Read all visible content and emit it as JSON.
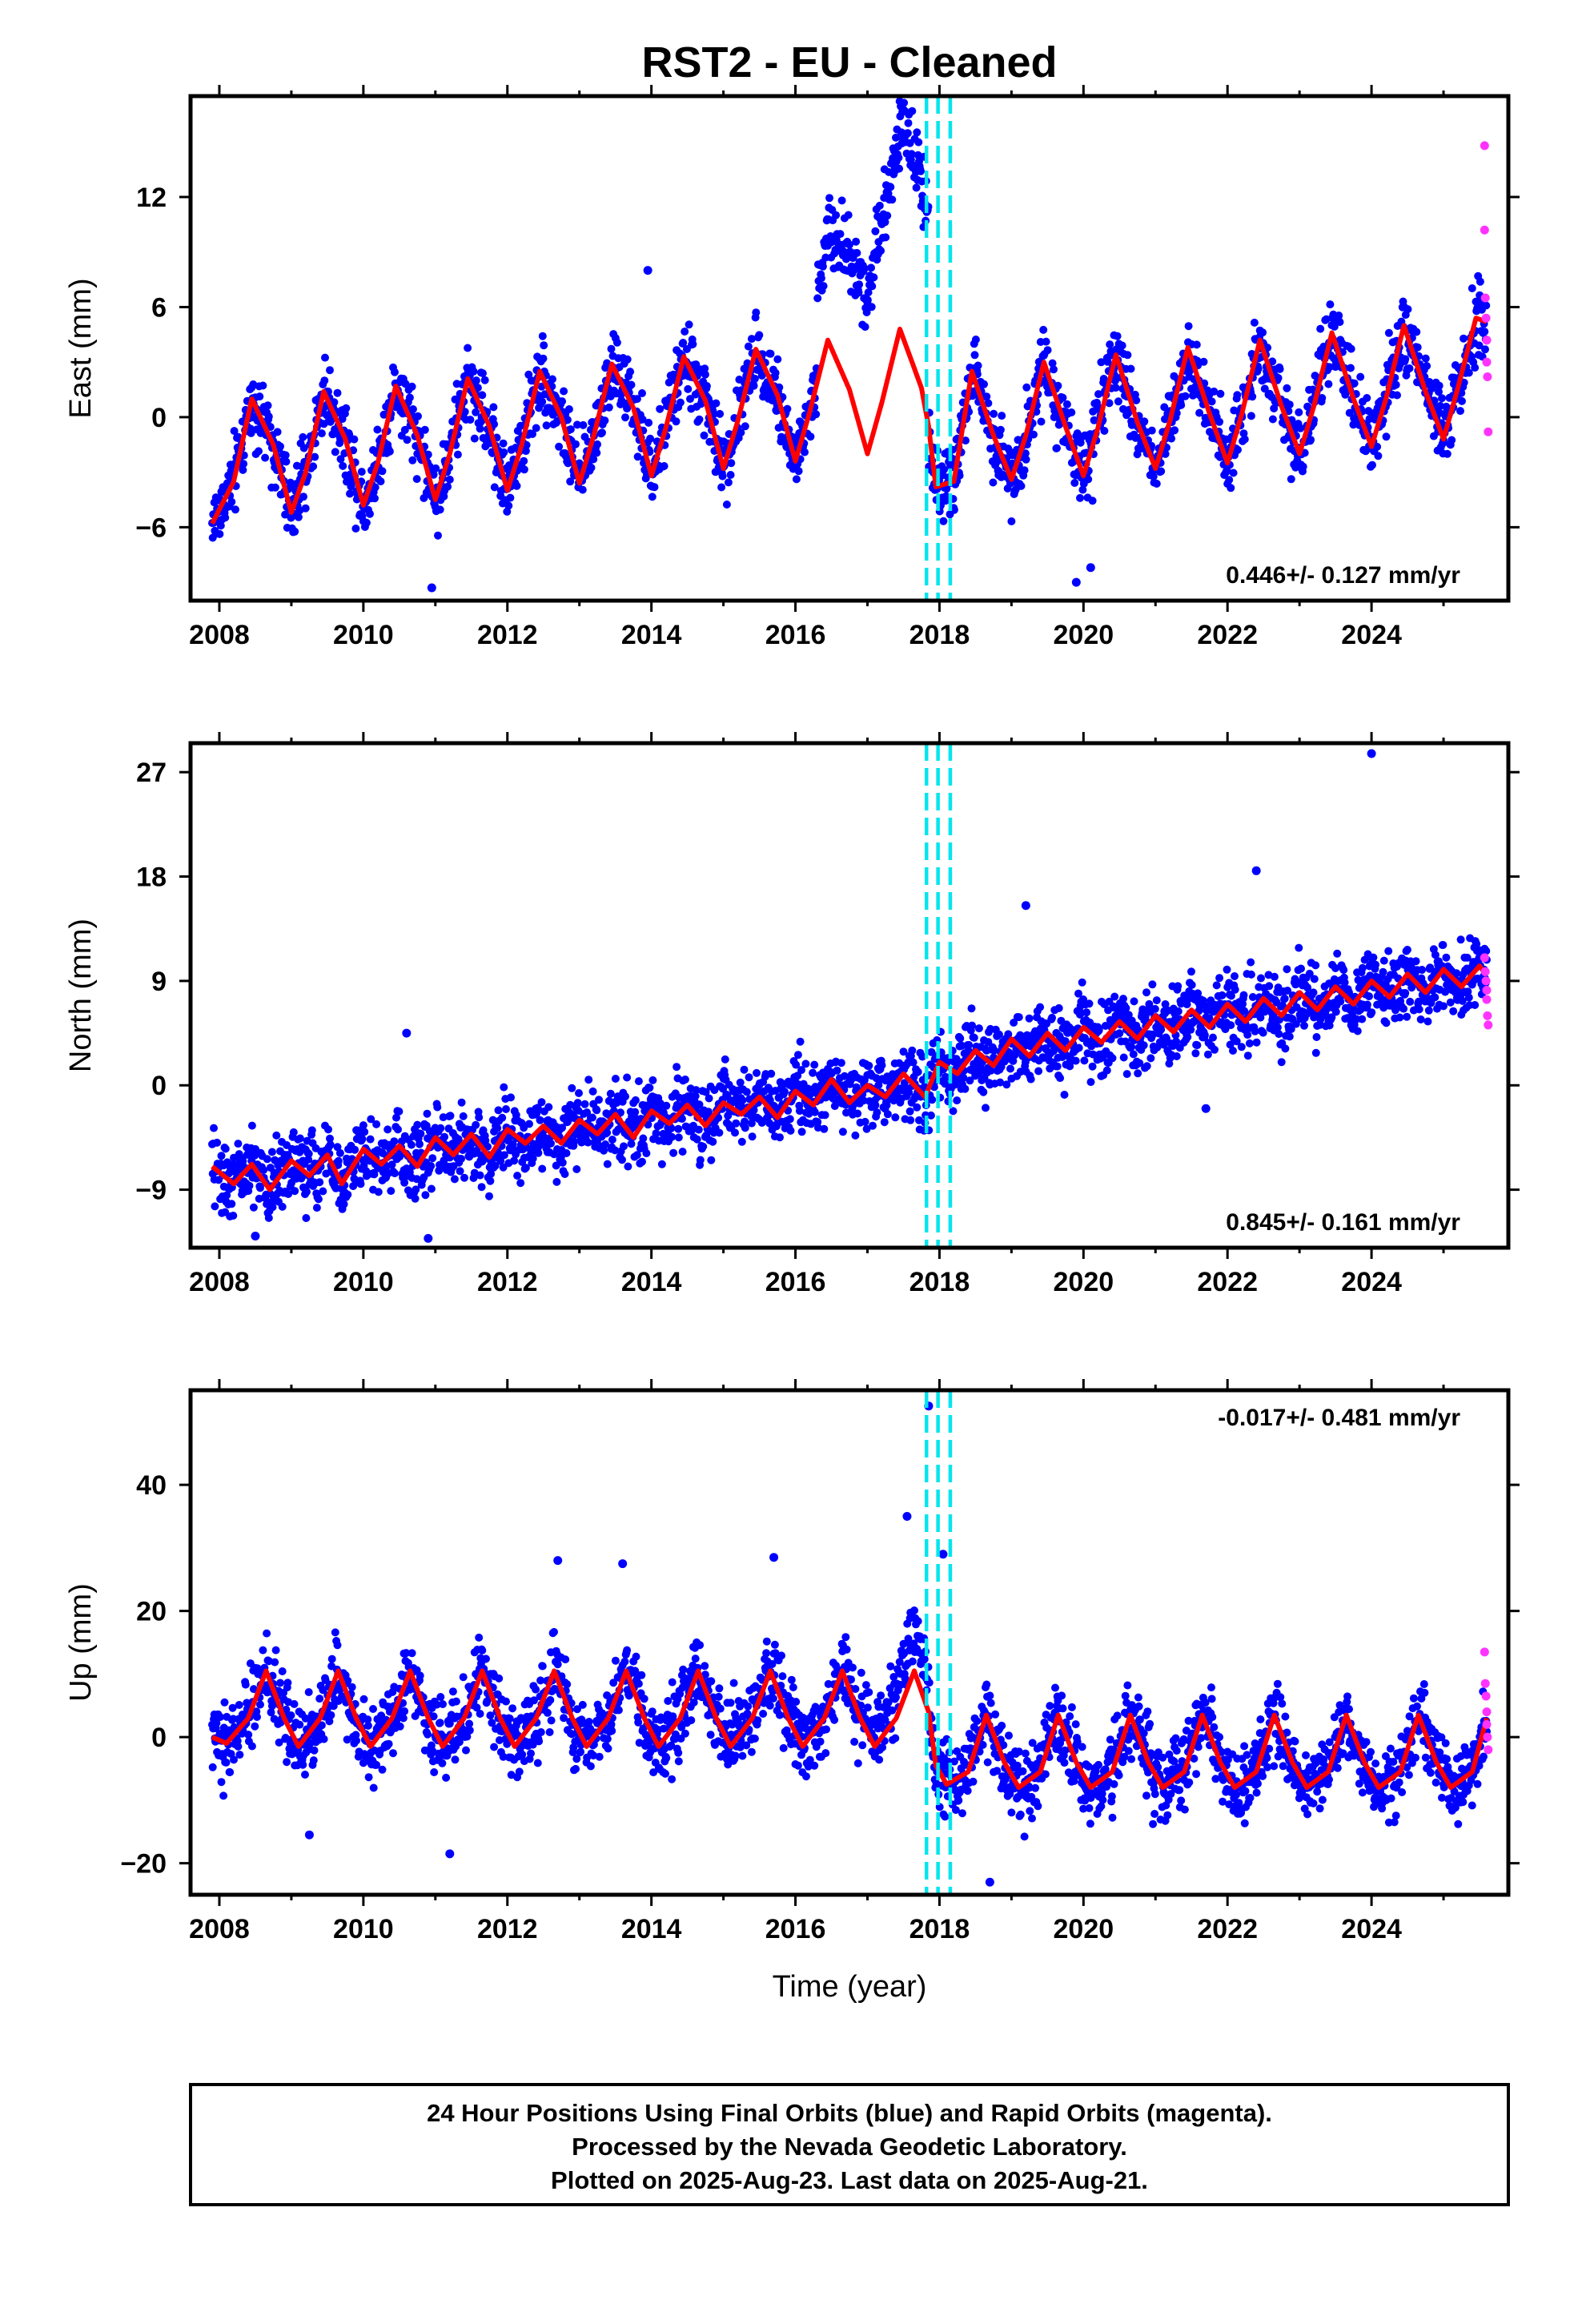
{
  "chart_data": [
    {
      "type": "scatter",
      "id": "east",
      "title": "RST2  - EU - Cleaned",
      "ylabel": "East (mm)",
      "xlabel": "",
      "xlim": [
        2007.6,
        2025.9
      ],
      "ylim": [
        -10,
        17.5
      ],
      "xticks": [
        2008,
        2010,
        2012,
        2014,
        2016,
        2018,
        2020,
        2022,
        2024
      ],
      "yticks": [
        -6,
        0,
        6,
        12
      ],
      "rate_label": "0.446+/- 0.127 mm/yr",
      "grid": false,
      "vertical_lines": [
        2017.82,
        2017.98,
        2018.15
      ],
      "fit_curve": {
        "color": "#ff0000",
        "x": [
          2007.9,
          2008.2,
          2008.45,
          2008.75,
          2009.0,
          2009.2,
          2009.45,
          2009.75,
          2010.0,
          2010.2,
          2010.45,
          2010.75,
          2011.0,
          2011.2,
          2011.45,
          2011.75,
          2012.0,
          2012.2,
          2012.45,
          2012.75,
          2013.0,
          2013.2,
          2013.45,
          2013.75,
          2014.0,
          2014.2,
          2014.45,
          2014.75,
          2015.0,
          2015.2,
          2015.45,
          2015.75,
          2016.0,
          2016.2,
          2016.45,
          2016.75,
          2017.0,
          2017.2,
          2017.45,
          2017.75,
          2017.85,
          2017.95,
          2018.2,
          2018.45,
          2018.75,
          2019.0,
          2019.2,
          2019.45,
          2019.75,
          2020.0,
          2020.2,
          2020.45,
          2020.75,
          2021.0,
          2021.2,
          2021.45,
          2021.75,
          2022.0,
          2022.2,
          2022.45,
          2022.75,
          2023.0,
          2023.2,
          2023.45,
          2023.75,
          2024.0,
          2024.2,
          2024.45,
          2024.75,
          2025.0,
          2025.2,
          2025.45,
          2025.6
        ],
        "y": [
          -5.8,
          -3.5,
          1.0,
          -1.5,
          -5.2,
          -3.0,
          1.4,
          -1.2,
          -4.8,
          -2.5,
          1.7,
          -1.0,
          -4.5,
          -2.0,
          2.1,
          -0.5,
          -4.0,
          -1.5,
          2.5,
          0.0,
          -3.6,
          -1.0,
          2.9,
          0.5,
          -3.2,
          -0.6,
          3.3,
          0.9,
          -2.8,
          -0.2,
          3.7,
          1.2,
          -2.4,
          0.3,
          4.2,
          1.5,
          -2.0,
          0.8,
          4.8,
          1.6,
          -0.5,
          -3.8,
          -3.5,
          2.5,
          -1.0,
          -3.4,
          -1.0,
          3.0,
          -0.5,
          -3.2,
          -0.6,
          3.4,
          -0.3,
          -2.8,
          -0.2,
          3.8,
          0.2,
          -2.5,
          0.2,
          4.2,
          0.6,
          -2.0,
          0.6,
          4.6,
          1.0,
          -1.6,
          1.0,
          5.0,
          1.4,
          -1.2,
          1.6,
          5.4,
          5.2
        ]
      },
      "outliers": [
        {
          "x": 2013.95,
          "y": 8.0
        },
        {
          "x": 2010.95,
          "y": -9.3
        },
        {
          "x": 2019.9,
          "y": -9.0
        },
        {
          "x": 2022.55,
          "y": 2.5
        },
        {
          "x": 2020.1,
          "y": -8.2
        }
      ],
      "rapid_points": [
        {
          "x": 2025.57,
          "y": 14.8
        },
        {
          "x": 2025.57,
          "y": 10.2
        },
        {
          "x": 2025.58,
          "y": 6.5
        },
        {
          "x": 2025.59,
          "y": 5.4
        },
        {
          "x": 2025.6,
          "y": 4.2
        },
        {
          "x": 2025.6,
          "y": 3.0
        },
        {
          "x": 2025.61,
          "y": 2.2
        },
        {
          "x": 2025.62,
          "y": -0.8
        }
      ],
      "colors": {
        "final": "#0000ff",
        "rapid": "#ff33ff",
        "fit": "#ff0000",
        "events": "#00e5ee"
      }
    },
    {
      "type": "scatter",
      "id": "north",
      "title": "",
      "ylabel": "North (mm)",
      "xlabel": "",
      "xlim": [
        2007.6,
        2025.9
      ],
      "ylim": [
        -14,
        29.5
      ],
      "xticks": [
        2008,
        2010,
        2012,
        2014,
        2016,
        2018,
        2020,
        2022,
        2024
      ],
      "yticks": [
        -9,
        0,
        9,
        18,
        27
      ],
      "rate_label": "0.845+/- 0.161 mm/yr",
      "grid": false,
      "vertical_lines": [
        2017.82,
        2017.98,
        2018.15
      ],
      "fit_curve": {
        "color": "#ff0000",
        "x": [
          2007.9,
          2008.2,
          2008.45,
          2008.7,
          2009.0,
          2009.25,
          2009.5,
          2009.7,
          2010.0,
          2010.25,
          2010.5,
          2010.75,
          2011.0,
          2011.25,
          2011.5,
          2011.75,
          2012.0,
          2012.25,
          2012.5,
          2012.75,
          2013.0,
          2013.25,
          2013.5,
          2013.75,
          2014.0,
          2014.25,
          2014.5,
          2014.75,
          2015.0,
          2015.25,
          2015.5,
          2015.75,
          2016.0,
          2016.25,
          2016.5,
          2016.75,
          2017.0,
          2017.25,
          2017.5,
          2017.8,
          2018.0,
          2018.25,
          2018.5,
          2018.75,
          2019.0,
          2019.25,
          2019.5,
          2019.75,
          2020.0,
          2020.25,
          2020.5,
          2020.75,
          2021.0,
          2021.25,
          2021.5,
          2021.75,
          2022.0,
          2022.25,
          2022.5,
          2022.75,
          2023.0,
          2023.25,
          2023.5,
          2023.75,
          2024.0,
          2024.25,
          2024.5,
          2024.75,
          2025.0,
          2025.25,
          2025.5,
          2025.6
        ],
        "y": [
          -7.0,
          -8.5,
          -6.8,
          -9.0,
          -6.5,
          -7.8,
          -6.0,
          -8.5,
          -5.5,
          -6.8,
          -5.2,
          -7.0,
          -4.5,
          -6.0,
          -4.2,
          -6.2,
          -3.8,
          -5.0,
          -3.5,
          -5.0,
          -3.0,
          -4.2,
          -2.5,
          -4.5,
          -2.2,
          -3.3,
          -1.7,
          -3.5,
          -1.5,
          -2.5,
          -1.0,
          -2.8,
          -0.5,
          -1.7,
          0.5,
          -1.5,
          0.0,
          -1.0,
          1.0,
          -1.0,
          2.0,
          1.0,
          3.0,
          1.7,
          4.0,
          2.5,
          4.5,
          3.0,
          5.0,
          3.7,
          5.5,
          4.0,
          6.0,
          4.6,
          6.5,
          5.0,
          7.0,
          5.5,
          7.5,
          6.0,
          8.0,
          6.5,
          8.5,
          7.0,
          9.0,
          7.6,
          9.6,
          8.0,
          10.0,
          8.5,
          10.3,
          9.5
        ]
      },
      "outliers": [
        {
          "x": 2024.0,
          "y": 28.6
        },
        {
          "x": 2022.4,
          "y": 18.5
        },
        {
          "x": 2019.2,
          "y": 15.5
        },
        {
          "x": 2010.6,
          "y": 4.5
        },
        {
          "x": 2010.9,
          "y": -13.2
        },
        {
          "x": 2008.5,
          "y": -13.0
        },
        {
          "x": 2021.7,
          "y": -2.0
        }
      ],
      "rapid_points": [
        {
          "x": 2025.57,
          "y": 11.0
        },
        {
          "x": 2025.58,
          "y": 9.8
        },
        {
          "x": 2025.59,
          "y": 9.0
        },
        {
          "x": 2025.6,
          "y": 8.2
        },
        {
          "x": 2025.6,
          "y": 7.4
        },
        {
          "x": 2025.61,
          "y": 6.0
        },
        {
          "x": 2025.62,
          "y": 5.2
        }
      ],
      "colors": {
        "final": "#0000ff",
        "rapid": "#ff33ff",
        "fit": "#ff0000",
        "events": "#00e5ee"
      }
    },
    {
      "type": "scatter",
      "id": "up",
      "title": "",
      "ylabel": "Up (mm)",
      "xlabel": "Time (year)",
      "xlim": [
        2007.6,
        2025.9
      ],
      "ylim": [
        -25,
        55
      ],
      "xticks": [
        2008,
        2010,
        2012,
        2014,
        2016,
        2018,
        2020,
        2022,
        2024
      ],
      "yticks": [
        -20,
        0,
        20,
        40
      ],
      "rate_label": "-0.017+/- 0.481 mm/yr",
      "grid": false,
      "vertical_lines": [
        2017.82,
        2017.98,
        2018.15
      ],
      "fit_curve": {
        "color": "#ff0000",
        "x": [
          2007.9,
          2008.1,
          2008.4,
          2008.65,
          2008.9,
          2009.1,
          2009.4,
          2009.65,
          2009.9,
          2010.1,
          2010.4,
          2010.65,
          2010.9,
          2011.1,
          2011.4,
          2011.65,
          2011.9,
          2012.1,
          2012.4,
          2012.65,
          2012.9,
          2013.1,
          2013.4,
          2013.65,
          2013.9,
          2014.1,
          2014.4,
          2014.65,
          2014.9,
          2015.1,
          2015.4,
          2015.65,
          2015.9,
          2016.1,
          2016.4,
          2016.65,
          2016.9,
          2017.1,
          2017.4,
          2017.65,
          2017.85,
          2017.95,
          2018.1,
          2018.4,
          2018.65,
          2018.9,
          2019.1,
          2019.4,
          2019.65,
          2019.9,
          2020.1,
          2020.4,
          2020.65,
          2020.9,
          2021.1,
          2021.4,
          2021.65,
          2021.9,
          2022.1,
          2022.4,
          2022.65,
          2022.9,
          2023.1,
          2023.4,
          2023.65,
          2023.9,
          2024.1,
          2024.4,
          2024.65,
          2024.9,
          2025.1,
          2025.4,
          2025.6
        ],
        "y": [
          0.0,
          -1.0,
          3.0,
          10.5,
          3.0,
          -1.5,
          3.0,
          10.5,
          3.0,
          -1.5,
          3.0,
          10.5,
          3.0,
          -1.5,
          3.0,
          10.5,
          3.0,
          -1.5,
          3.0,
          10.5,
          3.0,
          -1.5,
          3.0,
          10.5,
          3.0,
          -1.5,
          3.0,
          10.5,
          3.0,
          -1.5,
          3.0,
          10.5,
          3.0,
          -1.5,
          3.0,
          10.5,
          3.0,
          -1.5,
          3.0,
          10.5,
          4.0,
          -4.5,
          -7.5,
          -5.5,
          3.5,
          -4.0,
          -8.0,
          -5.5,
          3.5,
          -4.0,
          -8.0,
          -5.5,
          3.5,
          -4.0,
          -8.0,
          -5.5,
          3.5,
          -4.0,
          -8.0,
          -5.5,
          3.5,
          -4.0,
          -8.0,
          -5.5,
          3.5,
          -4.0,
          -8.0,
          -5.5,
          3.5,
          -4.0,
          -8.0,
          -5.5,
          3.0
        ]
      },
      "outliers": [
        {
          "x": 2017.85,
          "y": 52.5
        },
        {
          "x": 2017.55,
          "y": 35.0
        },
        {
          "x": 2018.05,
          "y": 29.0
        },
        {
          "x": 2012.7,
          "y": 28.0
        },
        {
          "x": 2013.6,
          "y": 27.5
        },
        {
          "x": 2015.7,
          "y": 28.5
        },
        {
          "x": 2018.7,
          "y": -23.0
        },
        {
          "x": 2011.2,
          "y": -18.5
        },
        {
          "x": 2009.25,
          "y": -15.5
        }
      ],
      "rapid_points": [
        {
          "x": 2025.57,
          "y": 13.5
        },
        {
          "x": 2025.58,
          "y": 8.5
        },
        {
          "x": 2025.59,
          "y": 6.5
        },
        {
          "x": 2025.6,
          "y": 4.0
        },
        {
          "x": 2025.6,
          "y": 2.0
        },
        {
          "x": 2025.61,
          "y": 0.0
        },
        {
          "x": 2025.62,
          "y": -2.0
        }
      ],
      "colors": {
        "final": "#0000ff",
        "rapid": "#ff33ff",
        "fit": "#ff0000",
        "events": "#00e5ee"
      }
    }
  ],
  "footer": {
    "line1": "24 Hour Positions Using Final Orbits (blue) and Rapid Orbits (magenta).",
    "line2": "Processed by the Nevada Geodetic Laboratory.",
    "line3": "Plotted on 2025-Aug-23. Last data on 2025-Aug-21."
  }
}
